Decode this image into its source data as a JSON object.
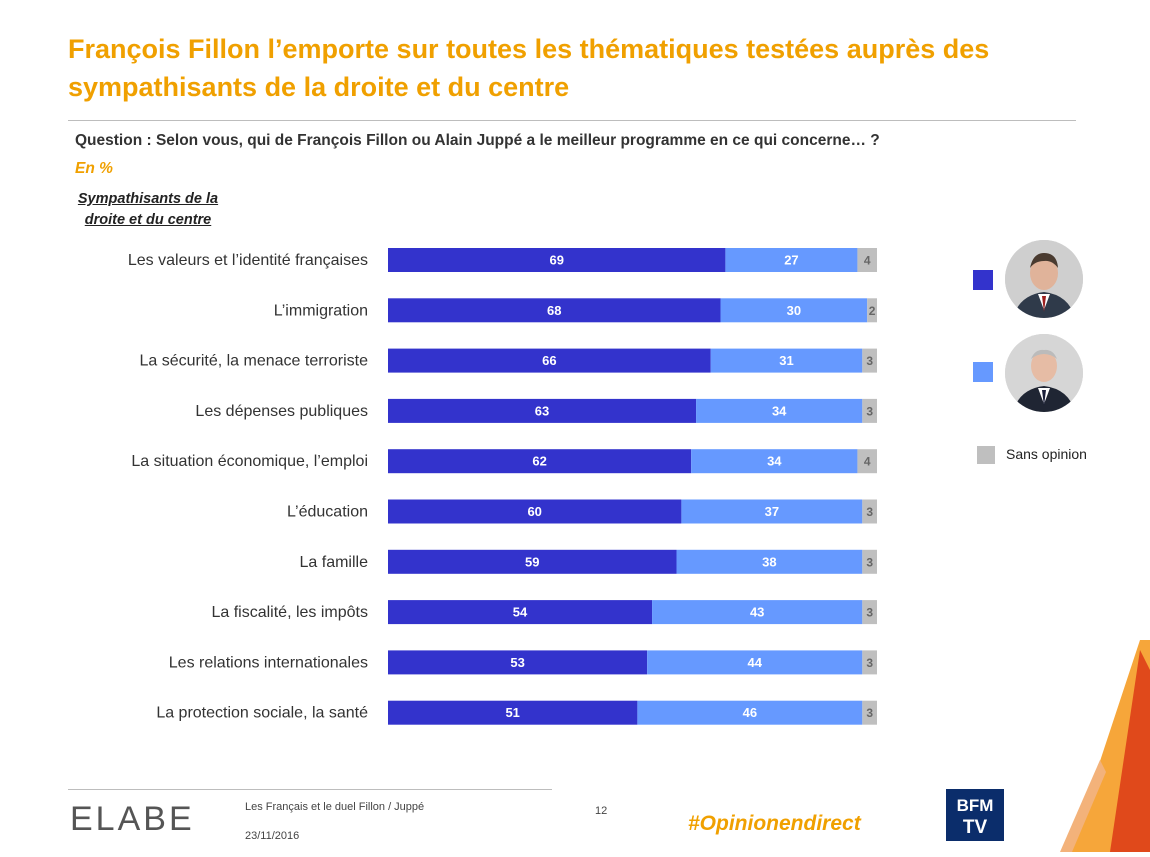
{
  "title": "François Fillon l’emporte sur toutes les thématiques testées auprès des sympathisants de la droite et du centre",
  "question": "Question : Selon vous, qui de François Fillon ou Alain Juppé a le meilleur programme en ce qui concerne… ?",
  "unit": "En %",
  "group_label_line1": "Sympathisants de la",
  "group_label_line2": "droite et du centre",
  "colors": {
    "fillon": "#3333cc",
    "juppe": "#6699ff",
    "sans_opinion": "#bfbfbf",
    "accent": "#f0a000"
  },
  "legend": {
    "fillon_icon": "fillon-portrait",
    "juppe_icon": "juppe-portrait",
    "sans_opinion": "Sans opinion"
  },
  "chart_data": {
    "type": "bar",
    "orientation": "horizontal",
    "stacked": true,
    "categories": [
      "Les valeurs et l’identité françaises",
      "L’immigration",
      "La sécurité, la menace terroriste",
      "Les dépenses publiques",
      "La situation économique, l’emploi",
      "L’éducation",
      "La famille",
      "La fiscalité, les impôts",
      "Les relations internationales",
      "La protection sociale, la santé"
    ],
    "series": [
      {
        "name": "François Fillon",
        "values": [
          69,
          68,
          66,
          63,
          62,
          60,
          59,
          54,
          53,
          51
        ]
      },
      {
        "name": "Alain Juppé",
        "values": [
          27,
          30,
          31,
          34,
          34,
          37,
          38,
          43,
          44,
          46
        ]
      },
      {
        "name": "Sans opinion",
        "values": [
          4,
          2,
          3,
          3,
          4,
          3,
          3,
          3,
          3,
          3
        ]
      }
    ],
    "xlim": [
      0,
      100
    ]
  },
  "footer": {
    "logo": "ELABE",
    "study": "Les Français et le duel Fillon / Juppé",
    "date": "23/11/2016",
    "page": "12",
    "hashtag": "#Opinionendirect",
    "channel_logo": "BFM TV"
  }
}
